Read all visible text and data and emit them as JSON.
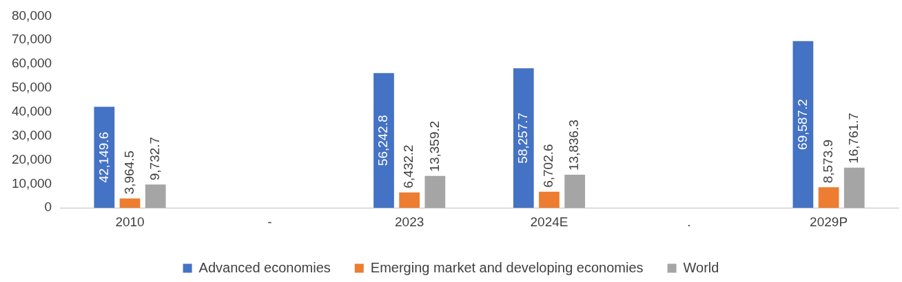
{
  "chart_data": {
    "type": "bar",
    "categories": [
      "2010",
      "-",
      "2023",
      "2024E",
      ".",
      "2029P"
    ],
    "series": [
      {
        "name": "Advanced economies",
        "color": "#4472c4",
        "values": [
          42149.6,
          null,
          56242.8,
          58257.7,
          null,
          69587.2
        ],
        "value_labels": [
          "42,149.6",
          null,
          "56,242.8",
          "58,257.7",
          null,
          "69,587.2"
        ]
      },
      {
        "name": "Emerging market and developing economies",
        "color": "#ed7d31",
        "values": [
          3964.5,
          null,
          6432.2,
          6702.6,
          null,
          8573.9
        ],
        "value_labels": [
          "3,964.5",
          null,
          "6,432.2",
          "6,702.6",
          null,
          "8,573.9"
        ]
      },
      {
        "name": "World",
        "color": "#a5a5a5",
        "values": [
          9732.7,
          null,
          13359.2,
          13836.3,
          null,
          16761.7
        ],
        "value_labels": [
          "9,732.7",
          null,
          "13,359.2",
          "13,836.3",
          null,
          "16,761.7"
        ]
      }
    ],
    "ylim": [
      0,
      80000
    ],
    "yticks": [
      {
        "value": 0,
        "label": "0"
      },
      {
        "value": 10000,
        "label": "10,000"
      },
      {
        "value": 20000,
        "label": "20,000"
      },
      {
        "value": 30000,
        "label": "30,000"
      },
      {
        "value": 40000,
        "label": "40,000"
      },
      {
        "value": 50000,
        "label": "50,000"
      },
      {
        "value": 60000,
        "label": "60,000"
      },
      {
        "value": 70000,
        "label": "70,000"
      },
      {
        "value": 80000,
        "label": "80,000"
      }
    ],
    "grid": false,
    "legend": "bottom"
  }
}
